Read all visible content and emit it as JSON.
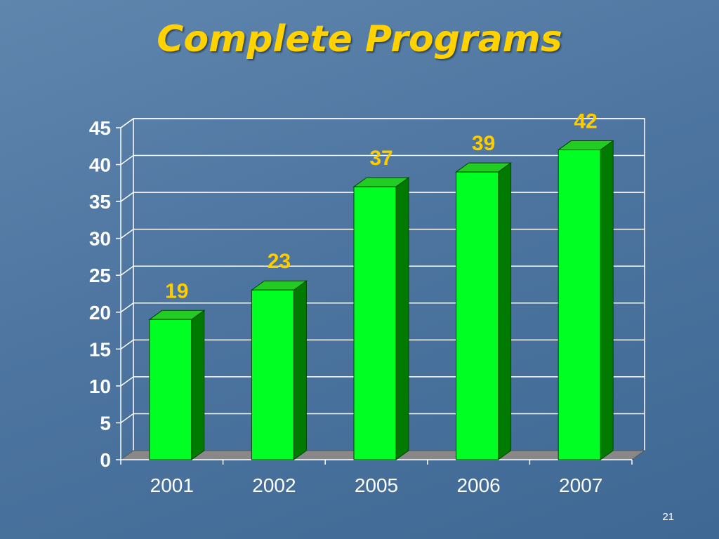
{
  "slide": {
    "page_number": "21"
  },
  "colors": {
    "bar_front": "#00ff22",
    "bar_side": "#007a00",
    "bar_top": "#22cc22",
    "data_label": "#ffcc00",
    "title": "#ffd200",
    "grid": "#ffffff",
    "floor": "#888888"
  },
  "chart_data": {
    "type": "bar",
    "title": "Complete Programs",
    "xlabel": "",
    "ylabel": "",
    "categories": [
      "2001",
      "2002",
      "2005",
      "2006",
      "2007"
    ],
    "values": [
      19,
      23,
      37,
      39,
      42
    ],
    "data_labels": [
      "19",
      "23",
      "37",
      "39",
      "42"
    ],
    "ylim": [
      0,
      45
    ],
    "yticks": [
      0,
      5,
      10,
      15,
      20,
      25,
      30,
      35,
      40,
      45
    ],
    "grid": true,
    "legend": "none",
    "style": "3d-column"
  }
}
